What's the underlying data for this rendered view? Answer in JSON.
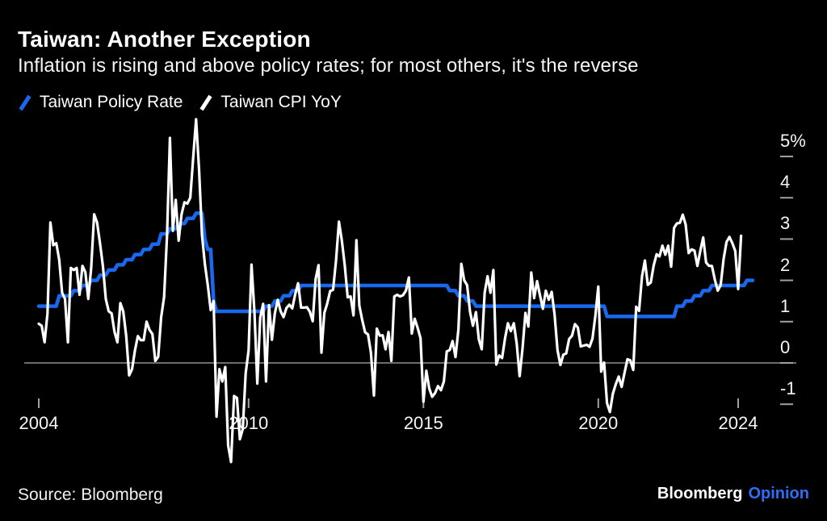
{
  "header": {
    "title": "Taiwan: Another Exception",
    "subtitle": "Inflation is rising and above policy rates; for most others, it's the reverse"
  },
  "legend": [
    {
      "label": "Taiwan Policy Rate",
      "color": "#1969f0"
    },
    {
      "label": "Taiwan CPI YoY",
      "color": "#ffffff"
    }
  ],
  "footer": {
    "source": "Source: Bloomberg",
    "brand": "Bloomberg",
    "brand_suffix": "Opinion",
    "brand_suffix_color": "#2e6ef5"
  },
  "chart_data": {
    "type": "line",
    "title": "Taiwan: Another Exception",
    "xlabel": "",
    "ylabel": "%",
    "grid": "zero-line-only",
    "legend_position": "top-left",
    "background": "#000000",
    "zero_line_color": "#8f8f8f",
    "tick_color": "#a0a0a0",
    "xlim": [
      2004.0,
      2024.5
    ],
    "ylim": [
      -2.6,
      6.1
    ],
    "x_ticks": [
      {
        "label": "2004",
        "t": 2004
      },
      {
        "label": "2010",
        "t": 2010
      },
      {
        "label": "2015",
        "t": 2015
      },
      {
        "label": "2020",
        "t": 2020
      },
      {
        "label": "2024",
        "t": 2024
      }
    ],
    "y_ticks": [
      {
        "label": "5%",
        "v": 5
      },
      {
        "label": "4",
        "v": 4
      },
      {
        "label": "3",
        "v": 3
      },
      {
        "label": "2",
        "v": 2
      },
      {
        "label": "1",
        "v": 1
      },
      {
        "label": "0",
        "v": 0
      },
      {
        "label": "-1",
        "v": -1
      }
    ],
    "series": [
      {
        "name": "Taiwan Policy Rate",
        "color": "#1969f0",
        "stroke_width": 4.5,
        "type": "step_changes",
        "end_t": 2024.45,
        "changes": [
          [
            2004.0,
            1.375
          ],
          [
            2004.58,
            1.625
          ],
          [
            2004.92,
            1.75
          ],
          [
            2005.17,
            1.875
          ],
          [
            2005.42,
            2.0
          ],
          [
            2005.67,
            2.125
          ],
          [
            2005.92,
            2.25
          ],
          [
            2006.17,
            2.375
          ],
          [
            2006.42,
            2.5
          ],
          [
            2006.67,
            2.625
          ],
          [
            2006.92,
            2.75
          ],
          [
            2007.17,
            2.875
          ],
          [
            2007.42,
            3.125
          ],
          [
            2007.67,
            3.25
          ],
          [
            2007.92,
            3.375
          ],
          [
            2008.17,
            3.5
          ],
          [
            2008.42,
            3.625
          ],
          [
            2008.67,
            3.5
          ],
          [
            2008.75,
            3.0
          ],
          [
            2008.83,
            2.75
          ],
          [
            2008.92,
            2.0
          ],
          [
            2009.0,
            1.5
          ],
          [
            2009.08,
            1.25
          ],
          [
            2010.42,
            1.375
          ],
          [
            2010.67,
            1.5
          ],
          [
            2010.92,
            1.625
          ],
          [
            2011.17,
            1.75
          ],
          [
            2011.42,
            1.875
          ],
          [
            2015.67,
            1.75
          ],
          [
            2015.92,
            1.625
          ],
          [
            2016.17,
            1.5
          ],
          [
            2016.42,
            1.375
          ],
          [
            2020.17,
            1.125
          ],
          [
            2022.17,
            1.375
          ],
          [
            2022.42,
            1.5
          ],
          [
            2022.67,
            1.625
          ],
          [
            2022.92,
            1.75
          ],
          [
            2023.17,
            1.875
          ],
          [
            2024.17,
            2.0
          ]
        ]
      },
      {
        "name": "Taiwan CPI YoY",
        "color": "#ffffff",
        "stroke_width": 3.2,
        "type": "monthly",
        "start_t": 2004.0,
        "values": [
          0.95,
          0.9,
          0.5,
          1.2,
          3.4,
          2.85,
          2.9,
          2.5,
          1.7,
          1.55,
          0.5,
          2.3,
          2.25,
          2.3,
          1.65,
          2.35,
          2.2,
          1.55,
          2.3,
          3.6,
          3.4,
          2.9,
          2.35,
          1.55,
          1.25,
          1.2,
          0.75,
          0.5,
          1.45,
          1.25,
          0.65,
          -0.3,
          -0.15,
          0.3,
          0.65,
          0.55,
          0.55,
          1.0,
          0.8,
          0.7,
          0.05,
          0.15,
          1.1,
          1.6,
          3.08,
          5.45,
          3.2,
          3.95,
          2.96,
          3.6,
          3.89,
          3.86,
          4.0,
          4.97,
          5.9,
          4.68,
          3.1,
          2.39,
          1.88,
          1.28,
          1.5,
          -1.3,
          -0.15,
          -0.45,
          -0.1,
          -2.0,
          -2.4,
          -0.8,
          -0.85,
          -1.85,
          -1.6,
          -0.25,
          0.3,
          2.38,
          1.26,
          -0.5,
          1.1,
          1.43,
          -0.45,
          1.4,
          0.56,
          1.2,
          1.53,
          1.25,
          1.11,
          1.33,
          1.41,
          1.32,
          1.66,
          1.93,
          1.34,
          1.34,
          1.35,
          1.24,
          1.01,
          2.03,
          2.37,
          0.25,
          1.21,
          1.44,
          1.74,
          1.77,
          2.46,
          3.42,
          2.96,
          2.36,
          1.59,
          1.61,
          1.15,
          2.97,
          1.39,
          1.04,
          0.74,
          0.69,
          0.25,
          -0.79,
          0.83,
          0.66,
          0.67,
          0.33,
          0.75,
          0.05,
          1.61,
          1.65,
          1.61,
          1.64,
          1.75,
          2.07,
          0.71,
          1.07,
          0.85,
          0.6,
          -0.94,
          -0.19,
          -0.62,
          -0.82,
          -0.73,
          -0.56,
          -0.66,
          -0.45,
          0.28,
          0.31,
          0.53,
          0.14,
          0.81,
          2.4,
          2.0,
          1.88,
          1.24,
          0.9,
          1.23,
          0.57,
          0.33,
          1.7,
          2.1,
          1.7,
          2.25,
          -0.04,
          0.18,
          0.12,
          0.59,
          0.96,
          0.77,
          0.96,
          0.47,
          -0.32,
          0.35,
          1.21,
          0.88,
          2.19,
          1.57,
          1.98,
          1.64,
          1.31,
          1.75,
          1.53,
          1.72,
          1.17,
          0.31,
          -0.05,
          0.2,
          0.23,
          0.58,
          0.66,
          0.94,
          0.86,
          0.4,
          0.42,
          0.44,
          0.39,
          0.59,
          1.14,
          1.85,
          -0.21,
          0.01,
          -0.97,
          -1.19,
          -0.75,
          -0.52,
          -0.33,
          -0.58,
          -0.24,
          0.09,
          0.06,
          -0.17,
          1.36,
          1.26,
          2.09,
          2.48,
          1.89,
          1.95,
          2.36,
          2.63,
          2.58,
          2.84,
          2.62,
          2.84,
          2.33,
          3.27,
          3.38,
          3.39,
          3.59,
          3.35,
          2.66,
          2.75,
          2.72,
          2.35,
          2.71,
          3.04,
          2.43,
          2.35,
          2.35,
          2.02,
          1.75,
          1.88,
          2.52,
          2.93,
          3.05,
          2.9,
          2.71,
          1.79,
          3.08
        ]
      }
    ]
  }
}
